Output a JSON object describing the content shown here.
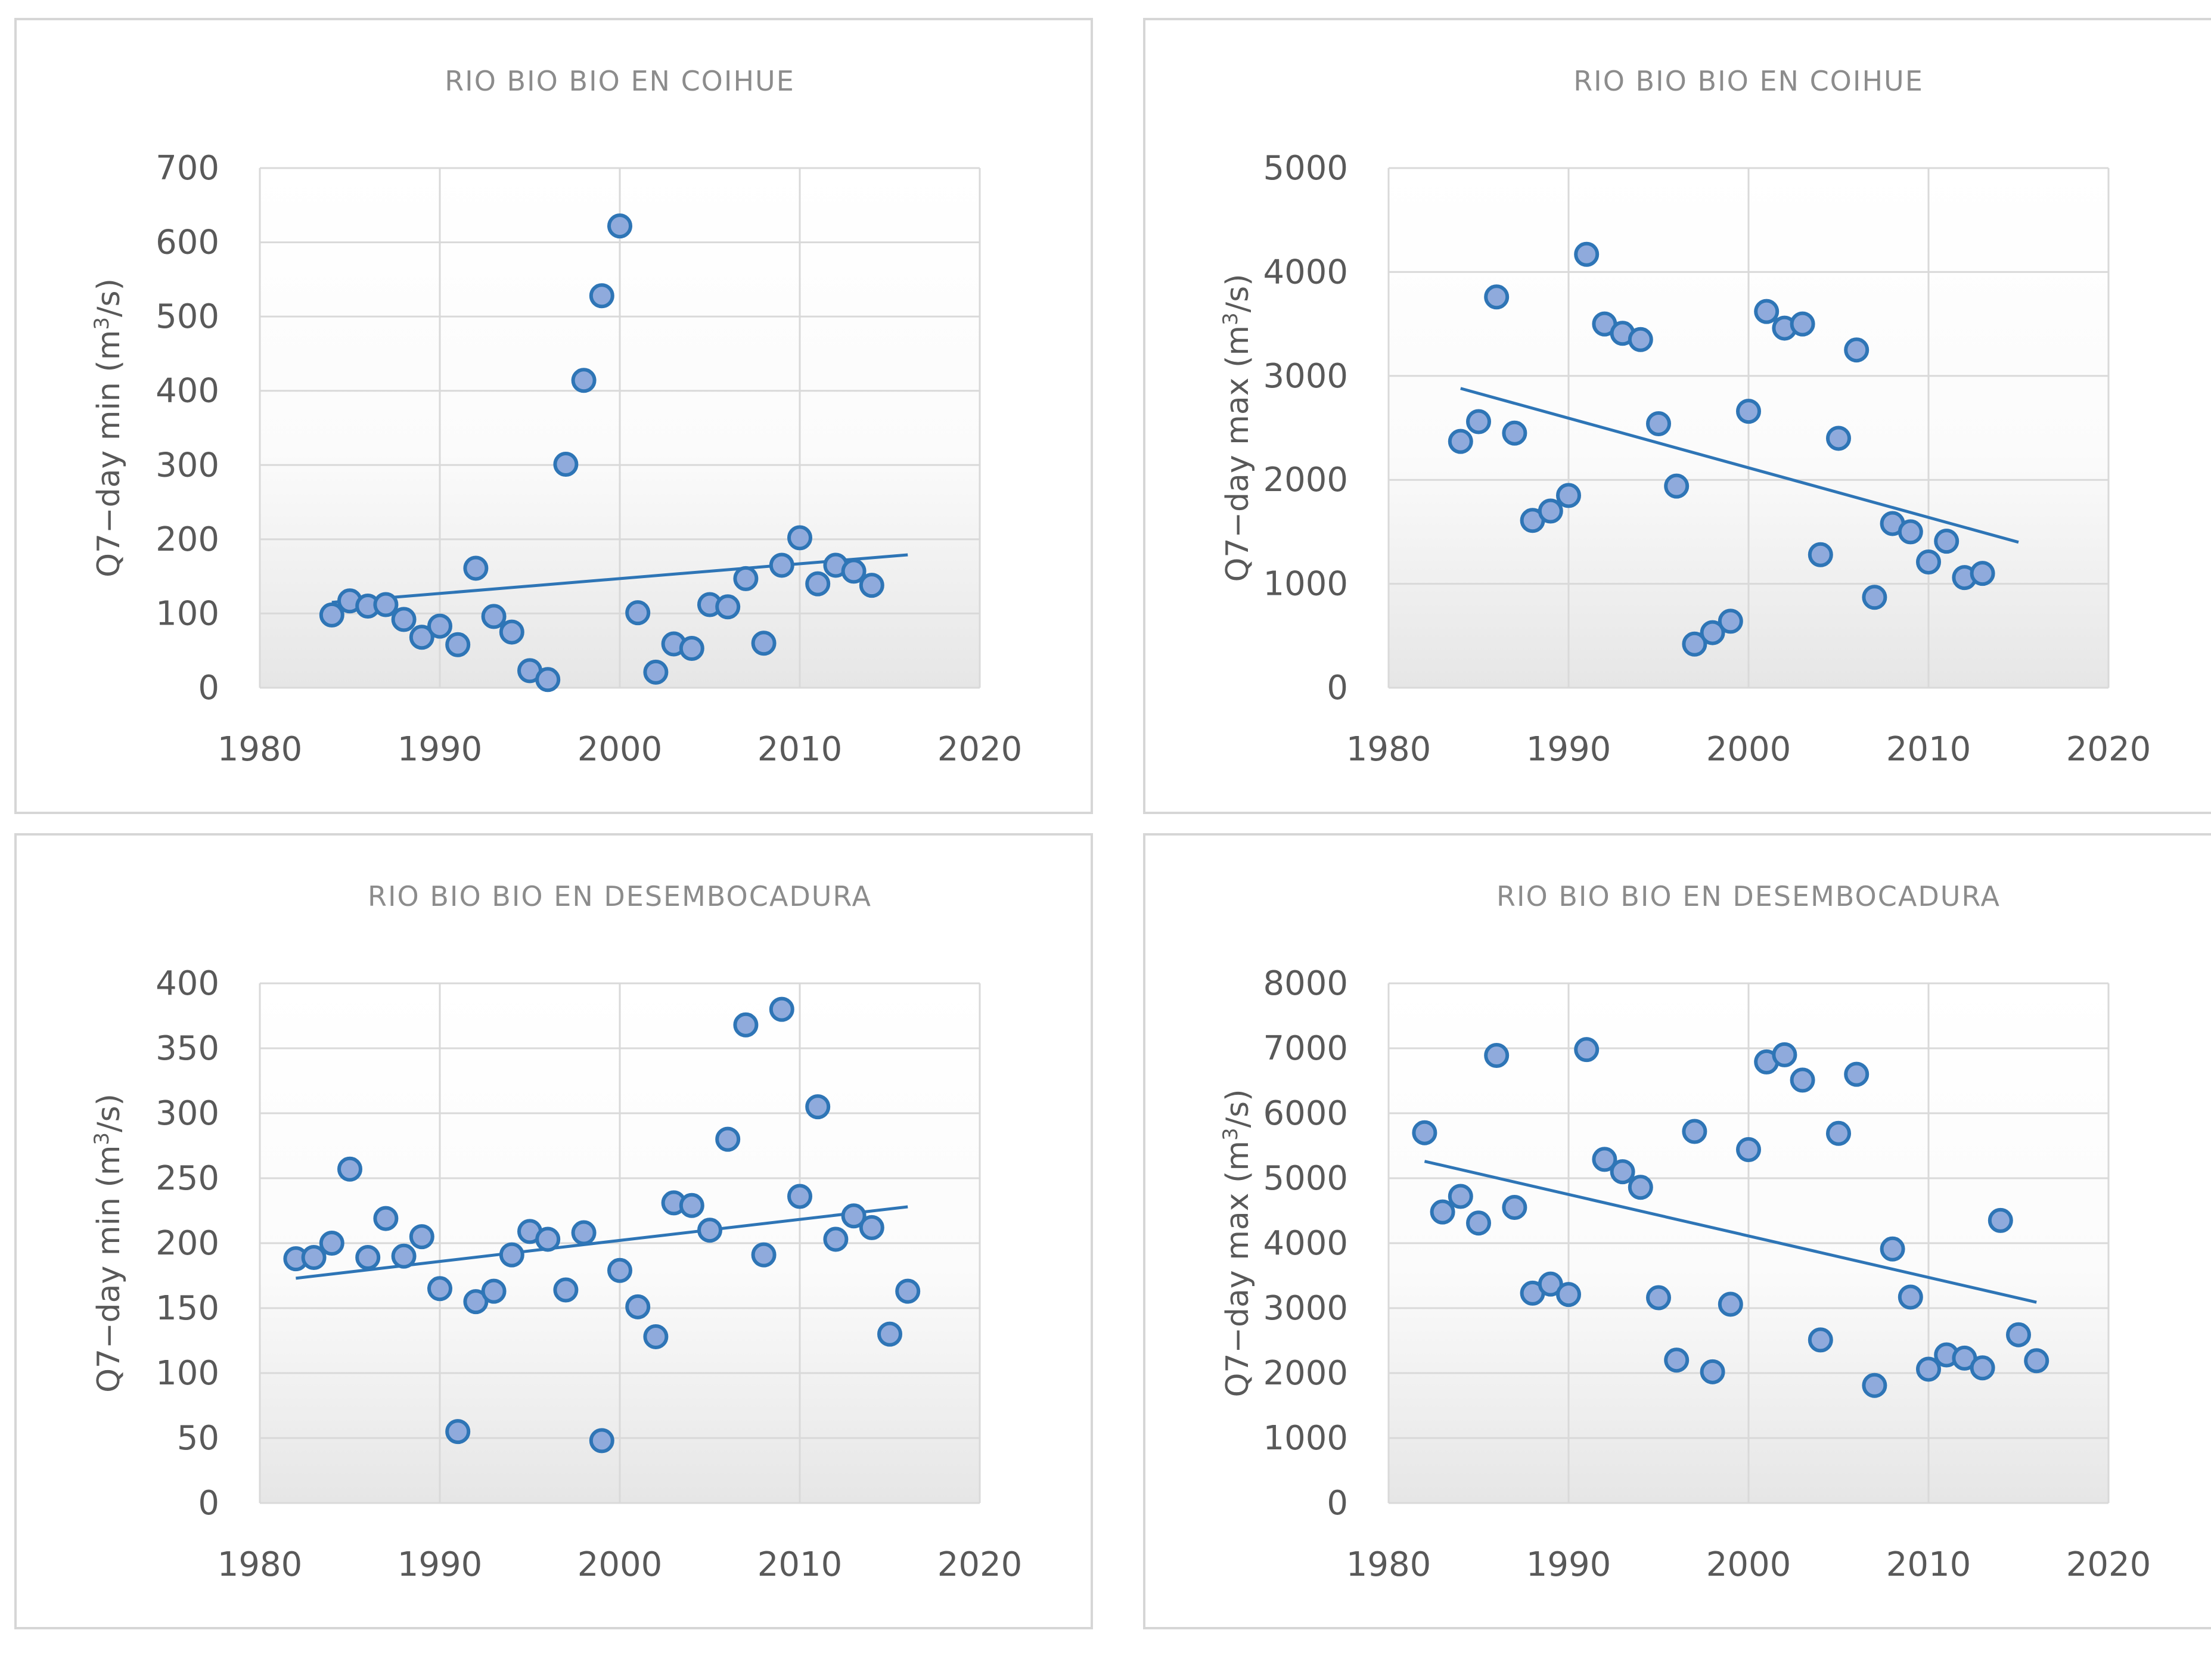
{
  "chart_data": [
    {
      "type": "scatter",
      "title": "RIO BIO BIO EN COIHUE",
      "xlabel": "",
      "ylabel": "Q7-day min (m3/s)",
      "ylabel_parts": {
        "main": "Q7−day min (m",
        "sup": "3",
        "tail": "/s)"
      },
      "xlim": [
        1980,
        2020
      ],
      "ylim": [
        0,
        700
      ],
      "xticks": [
        1980,
        1990,
        2000,
        2010,
        2020
      ],
      "yticks": [
        0,
        100,
        200,
        300,
        400,
        500,
        600,
        700
      ],
      "grid": true,
      "x": [
        1984,
        1985,
        1986,
        1987,
        1988,
        1989,
        1990,
        1991,
        1992,
        1993,
        1994,
        1995,
        1996,
        1997,
        1998,
        1999,
        2000,
        2001,
        2002,
        2003,
        2004,
        2005,
        2006,
        2007,
        2008,
        2009,
        2010,
        2011,
        2012,
        2013,
        2014
      ],
      "y": [
        98,
        117,
        110,
        112,
        92,
        68,
        83,
        58,
        161,
        96,
        75,
        23,
        11,
        301,
        414,
        528,
        622,
        101,
        21,
        59,
        53,
        112,
        109,
        147,
        60,
        165,
        202,
        140,
        165,
        157,
        138
      ],
      "trendline": {
        "x": [
          1984,
          2016
        ],
        "y": [
          115,
          179
        ]
      },
      "colors": {
        "marker_fill": "#8faadc",
        "marker_edge": "#2e75b6",
        "trend": "#2e75b6"
      }
    },
    {
      "type": "scatter",
      "title": "RIO BIO BIO EN COIHUE",
      "xlabel": "",
      "ylabel": "Q7-day max (m3/s)",
      "ylabel_parts": {
        "main": "Q7−day max (m",
        "sup": "3",
        "tail": "/s)"
      },
      "xlim": [
        1980,
        2020
      ],
      "ylim": [
        0,
        5000
      ],
      "xticks": [
        1980,
        1990,
        2000,
        2010,
        2020
      ],
      "yticks": [
        0,
        1000,
        2000,
        3000,
        4000,
        5000
      ],
      "grid": true,
      "x": [
        1984,
        1985,
        1986,
        1987,
        1988,
        1989,
        1990,
        1991,
        1992,
        1993,
        1994,
        1995,
        1996,
        1997,
        1998,
        1999,
        2000,
        2001,
        2002,
        2003,
        2004,
        2005,
        2006,
        2007,
        2008,
        2009,
        2010,
        2011,
        2012,
        2013
      ],
      "y": [
        2370,
        2560,
        3760,
        2450,
        1610,
        1700,
        1850,
        4170,
        3500,
        3410,
        3350,
        2540,
        1940,
        420,
        530,
        640,
        2660,
        3620,
        3460,
        3500,
        1280,
        2400,
        3250,
        870,
        1580,
        1500,
        1210,
        1410,
        1060,
        1100
      ],
      "trendline": {
        "x": [
          1984,
          2015
        ],
        "y": [
          2880,
          1400
        ]
      },
      "colors": {
        "marker_fill": "#8faadc",
        "marker_edge": "#2e75b6",
        "trend": "#2e75b6"
      }
    },
    {
      "type": "scatter",
      "title": "RIO BIO BIO EN DESEMBOCADURA",
      "xlabel": "",
      "ylabel": "Q7-day min (m3/s)",
      "ylabel_parts": {
        "main": "Q7−day min (m",
        "sup": "3",
        "tail": "/s)"
      },
      "xlim": [
        1980,
        2020
      ],
      "ylim": [
        0,
        400
      ],
      "xticks": [
        1980,
        1990,
        2000,
        2010,
        2020
      ],
      "yticks": [
        0,
        50,
        100,
        150,
        200,
        250,
        300,
        350,
        400
      ],
      "grid": true,
      "x": [
        1982,
        1983,
        1984,
        1985,
        1986,
        1987,
        1988,
        1989,
        1990,
        1991,
        1992,
        1993,
        1994,
        1995,
        1996,
        1997,
        1998,
        1999,
        2000,
        2001,
        2002,
        2003,
        2004,
        2005,
        2006,
        2007,
        2008,
        2009,
        2010,
        2011,
        2012,
        2013,
        2014,
        2015,
        2016
      ],
      "y": [
        188,
        189,
        200,
        257,
        189,
        219,
        190,
        205,
        165,
        55,
        155,
        163,
        191,
        209,
        203,
        164,
        208,
        48,
        179,
        151,
        128,
        231,
        229,
        210,
        280,
        368,
        191,
        380,
        236,
        305,
        203,
        221,
        212,
        130,
        163
      ],
      "trendline": {
        "x": [
          1982,
          2016
        ],
        "y": [
          173,
          228
        ]
      },
      "colors": {
        "marker_fill": "#8faadc",
        "marker_edge": "#2e75b6",
        "trend": "#2e75b6"
      }
    },
    {
      "type": "scatter",
      "title": "RIO BIO BIO EN DESEMBOCADURA",
      "xlabel": "",
      "ylabel": "Q7-day max (m3/s)",
      "ylabel_parts": {
        "main": "Q7−day max (m",
        "sup": "3",
        "tail": "/s)"
      },
      "xlim": [
        1980,
        2020
      ],
      "ylim": [
        0,
        8000
      ],
      "xticks": [
        1980,
        1990,
        2000,
        2010,
        2020
      ],
      "yticks": [
        0,
        1000,
        2000,
        3000,
        4000,
        5000,
        6000,
        7000,
        8000
      ],
      "grid": true,
      "x": [
        1982,
        1983,
        1984,
        1985,
        1986,
        1987,
        1988,
        1989,
        1990,
        1991,
        1992,
        1993,
        1994,
        1995,
        1996,
        1997,
        1998,
        1999,
        2000,
        2001,
        2002,
        2003,
        2004,
        2005,
        2006,
        2007,
        2008,
        2009,
        2010,
        2011,
        2012,
        2013,
        2014,
        2015,
        2016
      ],
      "y": [
        5700,
        4480,
        4720,
        4310,
        6890,
        4550,
        3230,
        3370,
        3210,
        6980,
        5290,
        5100,
        4860,
        3160,
        2200,
        5720,
        2020,
        3060,
        5440,
        6790,
        6900,
        6510,
        2510,
        5690,
        6600,
        1810,
        3910,
        3170,
        2060,
        2280,
        2230,
        2080,
        4350,
        2590,
        2190
      ],
      "trendline": {
        "x": [
          1982,
          2016
        ],
        "y": [
          5260,
          3090
        ]
      },
      "colors": {
        "marker_fill": "#8faadc",
        "marker_edge": "#2e75b6",
        "trend": "#2e75b6"
      }
    }
  ]
}
